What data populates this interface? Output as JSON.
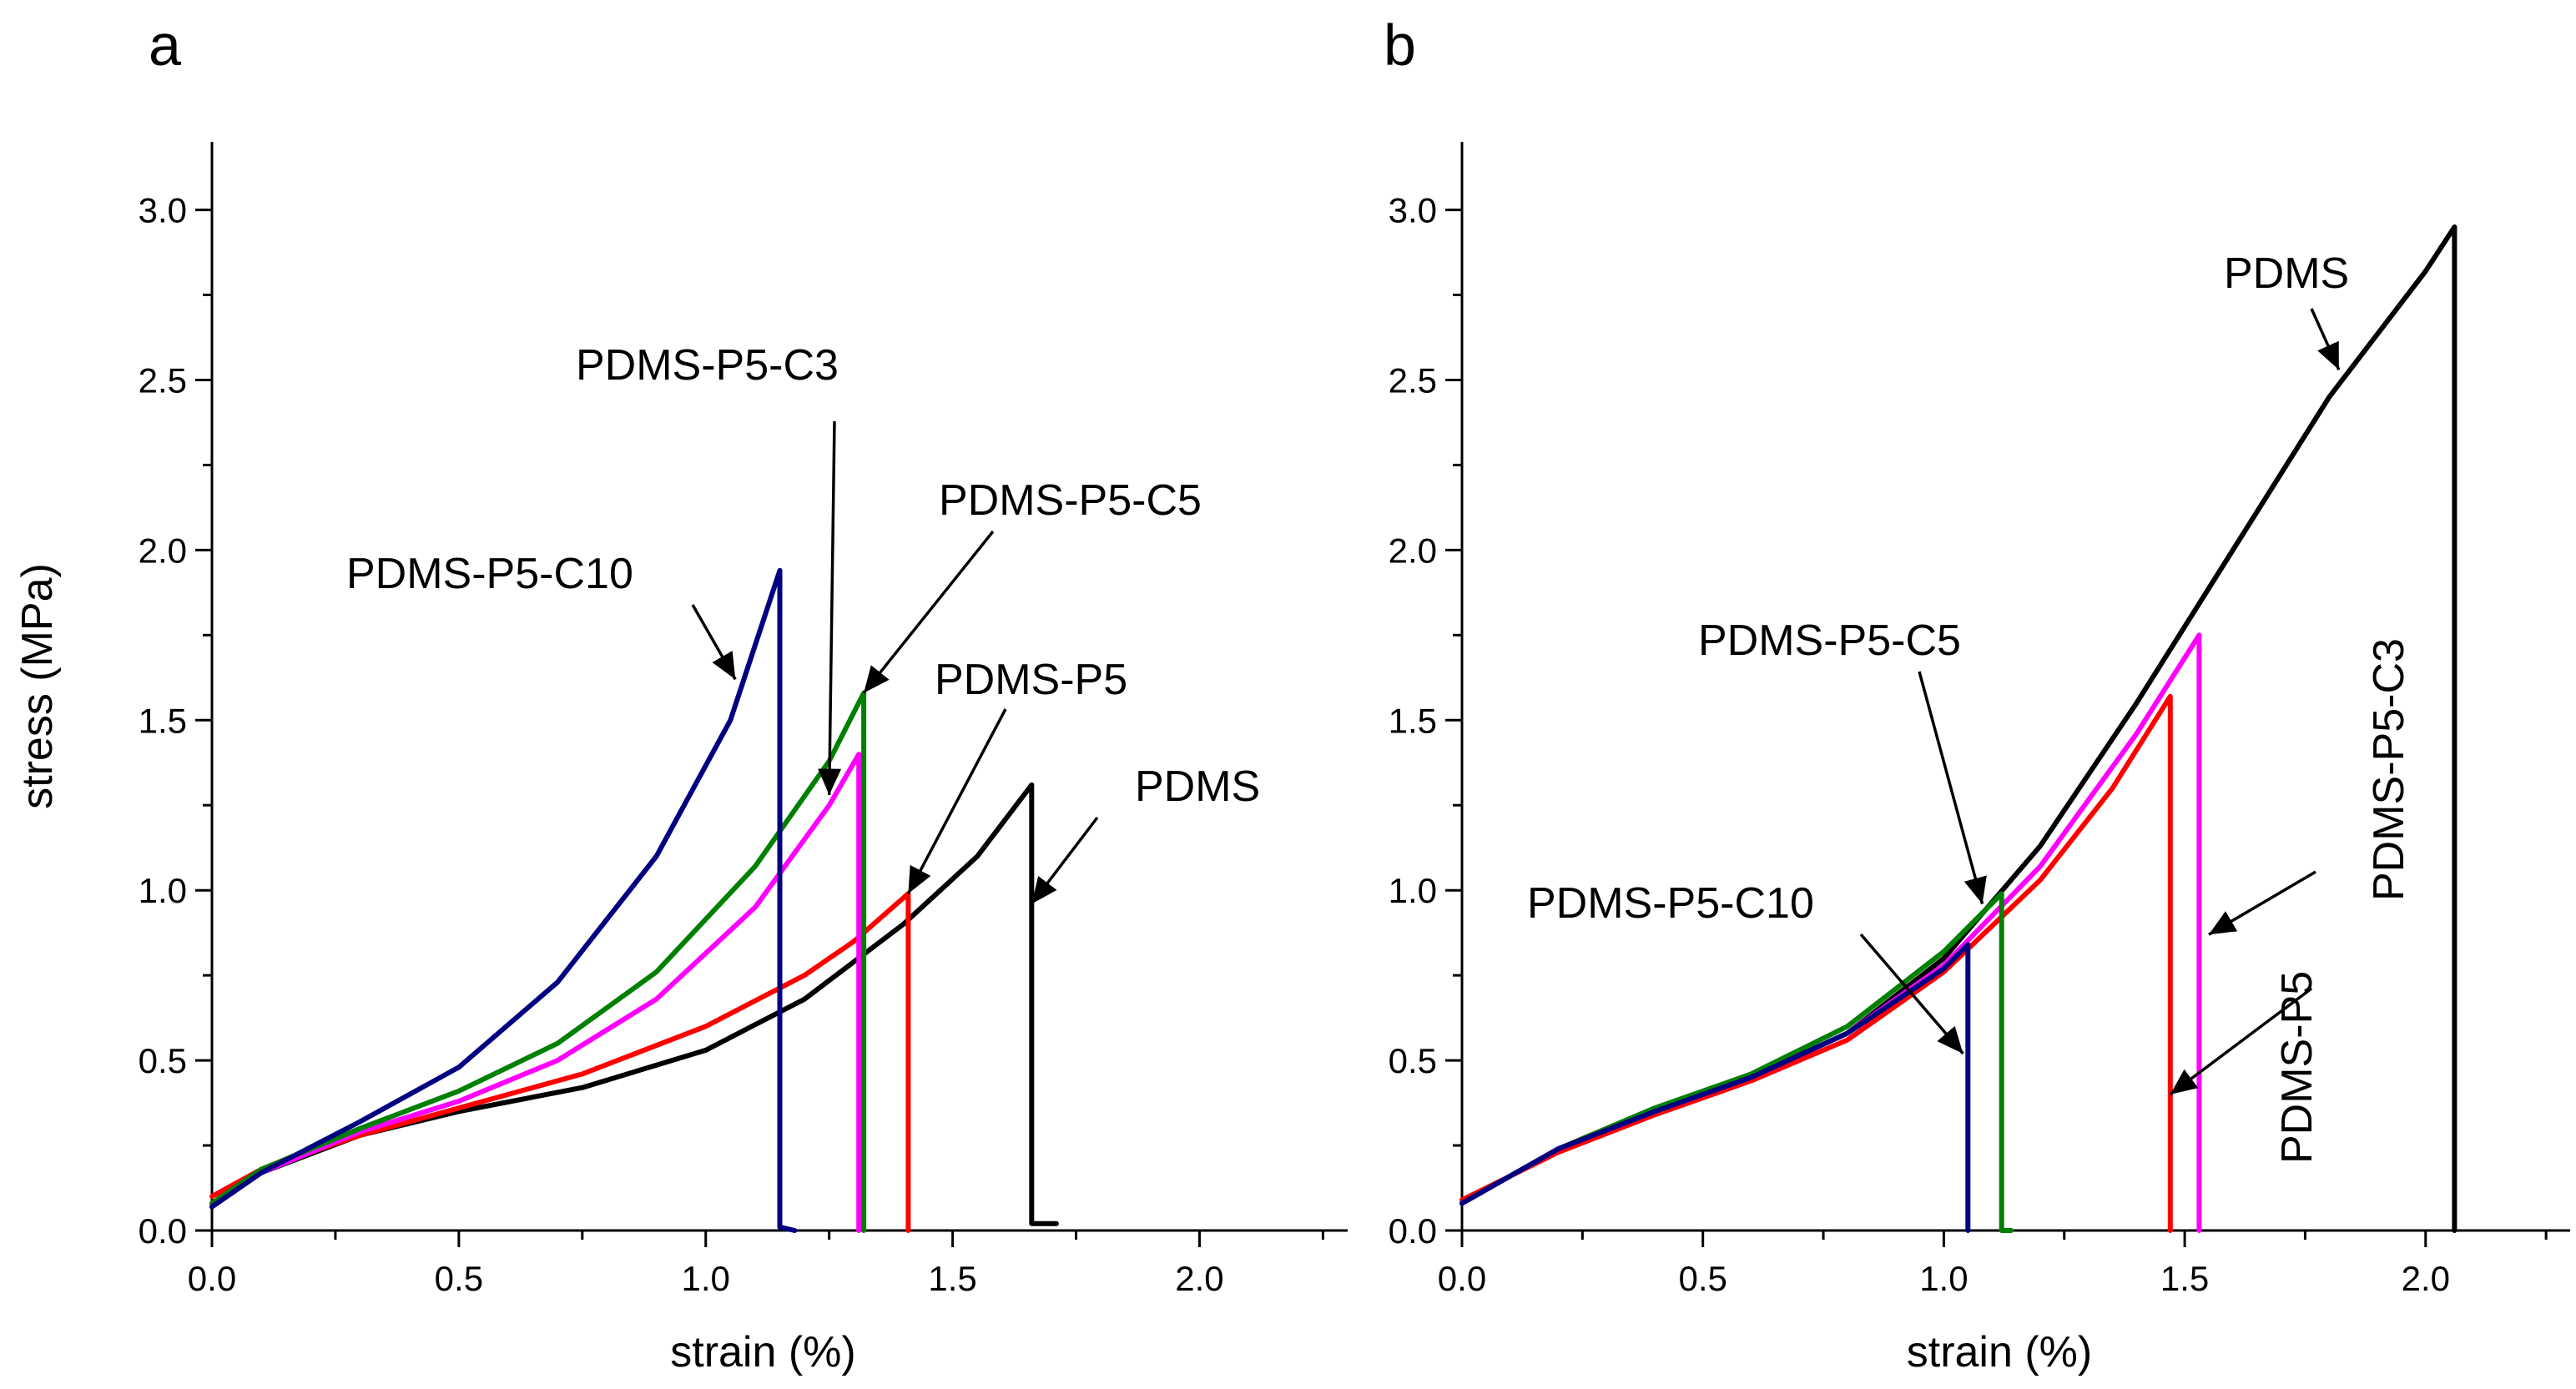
{
  "chart_data": [
    {
      "panel": "a",
      "type": "line",
      "xlabel": "strain (%)",
      "ylabel": "stress (MPa)",
      "xlim": [
        0,
        2.3
      ],
      "ylim": [
        0,
        3.2
      ],
      "xticks": [
        "0.0",
        "0.5",
        "1.0",
        "1.5",
        "2.0"
      ],
      "yticks": [
        "0.0",
        "0.5",
        "1.0",
        "1.5",
        "2.0",
        "2.5",
        "3.0"
      ],
      "series": [
        {
          "name": "PDMS",
          "color": "#000000",
          "points": [
            [
              0,
              0.07
            ],
            [
              0.1,
              0.17
            ],
            [
              0.3,
              0.28
            ],
            [
              0.5,
              0.35
            ],
            [
              0.75,
              0.42
            ],
            [
              1.0,
              0.53
            ],
            [
              1.2,
              0.68
            ],
            [
              1.4,
              0.9
            ],
            [
              1.55,
              1.1
            ],
            [
              1.66,
              1.31
            ],
            [
              1.66,
              0.02
            ],
            [
              1.71,
              0.02
            ]
          ]
        },
        {
          "name": "PDMS-P5",
          "color": "#ff0000",
          "points": [
            [
              0,
              0.1
            ],
            [
              0.1,
              0.18
            ],
            [
              0.3,
              0.28
            ],
            [
              0.5,
              0.36
            ],
            [
              0.75,
              0.46
            ],
            [
              1.0,
              0.6
            ],
            [
              1.2,
              0.75
            ],
            [
              1.3,
              0.85
            ],
            [
              1.41,
              0.99
            ],
            [
              1.41,
              0.0
            ]
          ]
        },
        {
          "name": "PDMS-P5-C3",
          "color": "#ff00ff",
          "points": [
            [
              0,
              0.08
            ],
            [
              0.1,
              0.17
            ],
            [
              0.3,
              0.29
            ],
            [
              0.5,
              0.38
            ],
            [
              0.7,
              0.5
            ],
            [
              0.9,
              0.68
            ],
            [
              1.1,
              0.95
            ],
            [
              1.25,
              1.25
            ],
            [
              1.31,
              1.4
            ],
            [
              1.31,
              0.0
            ]
          ]
        },
        {
          "name": "PDMS-P5-C5",
          "color": "#008000",
          "points": [
            [
              0,
              0.08
            ],
            [
              0.1,
              0.18
            ],
            [
              0.3,
              0.3
            ],
            [
              0.5,
              0.41
            ],
            [
              0.7,
              0.55
            ],
            [
              0.9,
              0.76
            ],
            [
              1.1,
              1.07
            ],
            [
              1.25,
              1.38
            ],
            [
              1.32,
              1.58
            ],
            [
              1.32,
              0.0
            ]
          ]
        },
        {
          "name": "PDMS-P5-C10",
          "color": "#000080",
          "points": [
            [
              0,
              0.07
            ],
            [
              0.1,
              0.17
            ],
            [
              0.3,
              0.32
            ],
            [
              0.5,
              0.48
            ],
            [
              0.7,
              0.73
            ],
            [
              0.9,
              1.1
            ],
            [
              1.05,
              1.5
            ],
            [
              1.15,
              1.94
            ],
            [
              1.15,
              0.01
            ],
            [
              1.18,
              0.0
            ]
          ]
        }
      ],
      "annotations": [
        {
          "text": "PDMS",
          "target": [
            1.66,
            0.96
          ]
        },
        {
          "text": "PDMS-P5",
          "target": [
            1.41,
            0.99
          ]
        },
        {
          "text": "PDMS-P5-C3",
          "target": [
            1.25,
            1.28
          ]
        },
        {
          "text": "PDMS-P5-C5",
          "target": [
            1.32,
            1.58
          ]
        },
        {
          "text": "PDMS-P5-C10",
          "target": [
            1.06,
            1.62
          ]
        }
      ]
    },
    {
      "panel": "b",
      "type": "line",
      "xlabel": "strain (%)",
      "ylabel": "",
      "xlim": [
        0,
        2.3
      ],
      "ylim": [
        0,
        3.2
      ],
      "xticks": [
        "0.0",
        "0.5",
        "1.0",
        "1.5",
        "2.0"
      ],
      "yticks": [
        "0.0",
        "0.5",
        "1.0",
        "1.5",
        "2.0",
        "2.5",
        "3.0"
      ],
      "series": [
        {
          "name": "PDMS",
          "color": "#000000",
          "points": [
            [
              0,
              0.08
            ],
            [
              0.2,
              0.24
            ],
            [
              0.4,
              0.35
            ],
            [
              0.6,
              0.45
            ],
            [
              0.8,
              0.58
            ],
            [
              1.0,
              0.8
            ],
            [
              1.2,
              1.13
            ],
            [
              1.4,
              1.55
            ],
            [
              1.6,
              2.0
            ],
            [
              1.8,
              2.45
            ],
            [
              2.0,
              2.82
            ],
            [
              2.06,
              2.95
            ],
            [
              2.06,
              0.0
            ]
          ]
        },
        {
          "name": "PDMS-P5",
          "color": "#ff0000",
          "points": [
            [
              0,
              0.09
            ],
            [
              0.2,
              0.23
            ],
            [
              0.4,
              0.34
            ],
            [
              0.6,
              0.44
            ],
            [
              0.8,
              0.56
            ],
            [
              1.0,
              0.76
            ],
            [
              1.2,
              1.03
            ],
            [
              1.35,
              1.3
            ],
            [
              1.47,
              1.57
            ],
            [
              1.47,
              0.0
            ]
          ]
        },
        {
          "name": "PDMS-P5-C3",
          "color": "#ff00ff",
          "points": [
            [
              0,
              0.08
            ],
            [
              0.2,
              0.24
            ],
            [
              0.4,
              0.35
            ],
            [
              0.6,
              0.45
            ],
            [
              0.8,
              0.58
            ],
            [
              1.0,
              0.78
            ],
            [
              1.2,
              1.07
            ],
            [
              1.4,
              1.46
            ],
            [
              1.53,
              1.75
            ],
            [
              1.53,
              0.0
            ]
          ]
        },
        {
          "name": "PDMS-P5-C5",
          "color": "#008000",
          "points": [
            [
              0,
              0.08
            ],
            [
              0.2,
              0.24
            ],
            [
              0.4,
              0.36
            ],
            [
              0.6,
              0.46
            ],
            [
              0.8,
              0.6
            ],
            [
              1.0,
              0.82
            ],
            [
              1.12,
              0.99
            ],
            [
              1.12,
              0.0
            ],
            [
              1.14,
              0.0
            ]
          ]
        },
        {
          "name": "PDMS-P5-C10",
          "color": "#000080",
          "points": [
            [
              0,
              0.08
            ],
            [
              0.2,
              0.24
            ],
            [
              0.4,
              0.35
            ],
            [
              0.6,
              0.45
            ],
            [
              0.8,
              0.58
            ],
            [
              1.0,
              0.77
            ],
            [
              1.05,
              0.84
            ],
            [
              1.05,
              0.0
            ]
          ]
        }
      ],
      "annotations": [
        {
          "text": "PDMS",
          "target": [
            1.82,
            2.53
          ]
        },
        {
          "text": "PDMS-P5-C3",
          "target": [
            1.55,
            0.87
          ]
        },
        {
          "text": "PDMS-P5",
          "target": [
            1.47,
            0.4
          ]
        },
        {
          "text": "PDMS-P5-C5",
          "target": [
            1.08,
            0.96
          ]
        },
        {
          "text": "PDMS-P5-C10",
          "target": [
            1.04,
            0.52
          ]
        }
      ]
    }
  ]
}
